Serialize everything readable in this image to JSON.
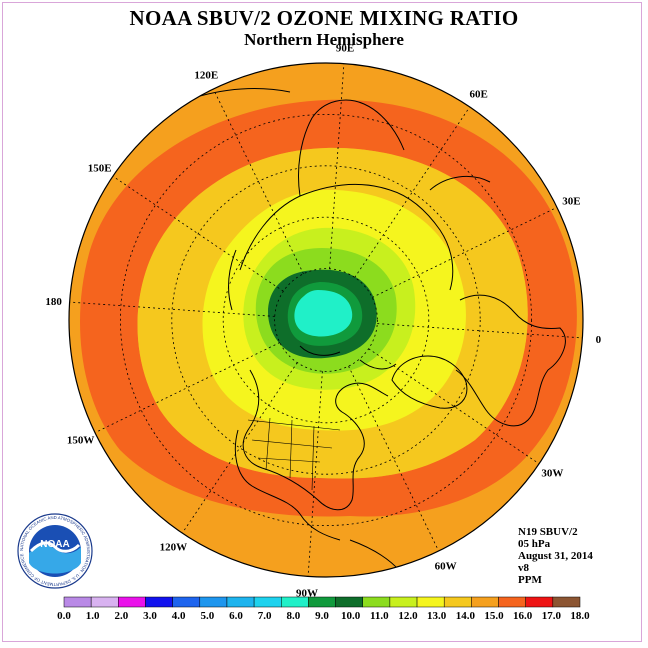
{
  "title": "NOAA SBUV/2 OZONE MIXING RATIO",
  "subtitle": "Northern Hemisphere",
  "logo_text": "NOAA",
  "logo_ring_text": "NATIONAL OCEANIC AND ATMOSPHERIC ADMINISTRATION · U.S. DEPARTMENT OF COMMERCE",
  "info": {
    "instrument": "N19 SBUV/2",
    "pressure": "05 hPa",
    "date": "August 31, 2014",
    "version": "v8",
    "unit": "PPM"
  },
  "longitude_labels": [
    {
      "text": "90E",
      "lon": 90
    },
    {
      "text": "60E",
      "lon": 60
    },
    {
      "text": "30E",
      "lon": 30
    },
    {
      "text": "0",
      "lon": 0
    },
    {
      "text": "30W",
      "lon": -30
    },
    {
      "text": "60W",
      "lon": -60
    },
    {
      "text": "90W",
      "lon": -90
    },
    {
      "text": "120W",
      "lon": -120
    },
    {
      "text": "150W",
      "lon": -150
    },
    {
      "text": "180",
      "lon": 180
    },
    {
      "text": "150E",
      "lon": 150
    },
    {
      "text": "120E",
      "lon": 120
    }
  ],
  "colorbar": {
    "ticks": [
      "0.0",
      "1.0",
      "2.0",
      "3.0",
      "4.0",
      "5.0",
      "6.0",
      "7.0",
      "8.0",
      "9.0",
      "10.0",
      "11.0",
      "12.0",
      "13.0",
      "14.0",
      "15.0",
      "16.0",
      "17.0",
      "18.0"
    ],
    "colors": [
      "#b989e6",
      "#d8b2f0",
      "#ea12ea",
      "#1212ee",
      "#1e64ee",
      "#1e96ee",
      "#1eb4ee",
      "#1ed2ee",
      "#20f0c8",
      "#109a3c",
      "#0e6e2a",
      "#8cdc1e",
      "#c8f01e",
      "#f5f51e",
      "#f5c81e",
      "#f5a01e",
      "#f5641e",
      "#ee1414",
      "#8c5532"
    ]
  },
  "contours": [
    {
      "level_min": 15,
      "level_max": 16,
      "color": "#f5641e"
    },
    {
      "level_min": 14,
      "level_max": 15,
      "color": "#f5a01e"
    },
    {
      "level_min": 13,
      "level_max": 14,
      "color": "#f5c81e"
    },
    {
      "level_min": 12,
      "level_max": 13,
      "color": "#f5f51e"
    },
    {
      "level_min": 11,
      "level_max": 12,
      "color": "#c8f01e"
    },
    {
      "level_min": 10,
      "level_max": 11,
      "color": "#8cdc1e"
    },
    {
      "level_min": 9,
      "level_max": 10,
      "color": "#0e6e2a"
    },
    {
      "level_min": 8,
      "level_max": 9,
      "color": "#109a3c"
    },
    {
      "level_min": 7,
      "level_max": 8,
      "color": "#20f0c8"
    }
  ]
}
